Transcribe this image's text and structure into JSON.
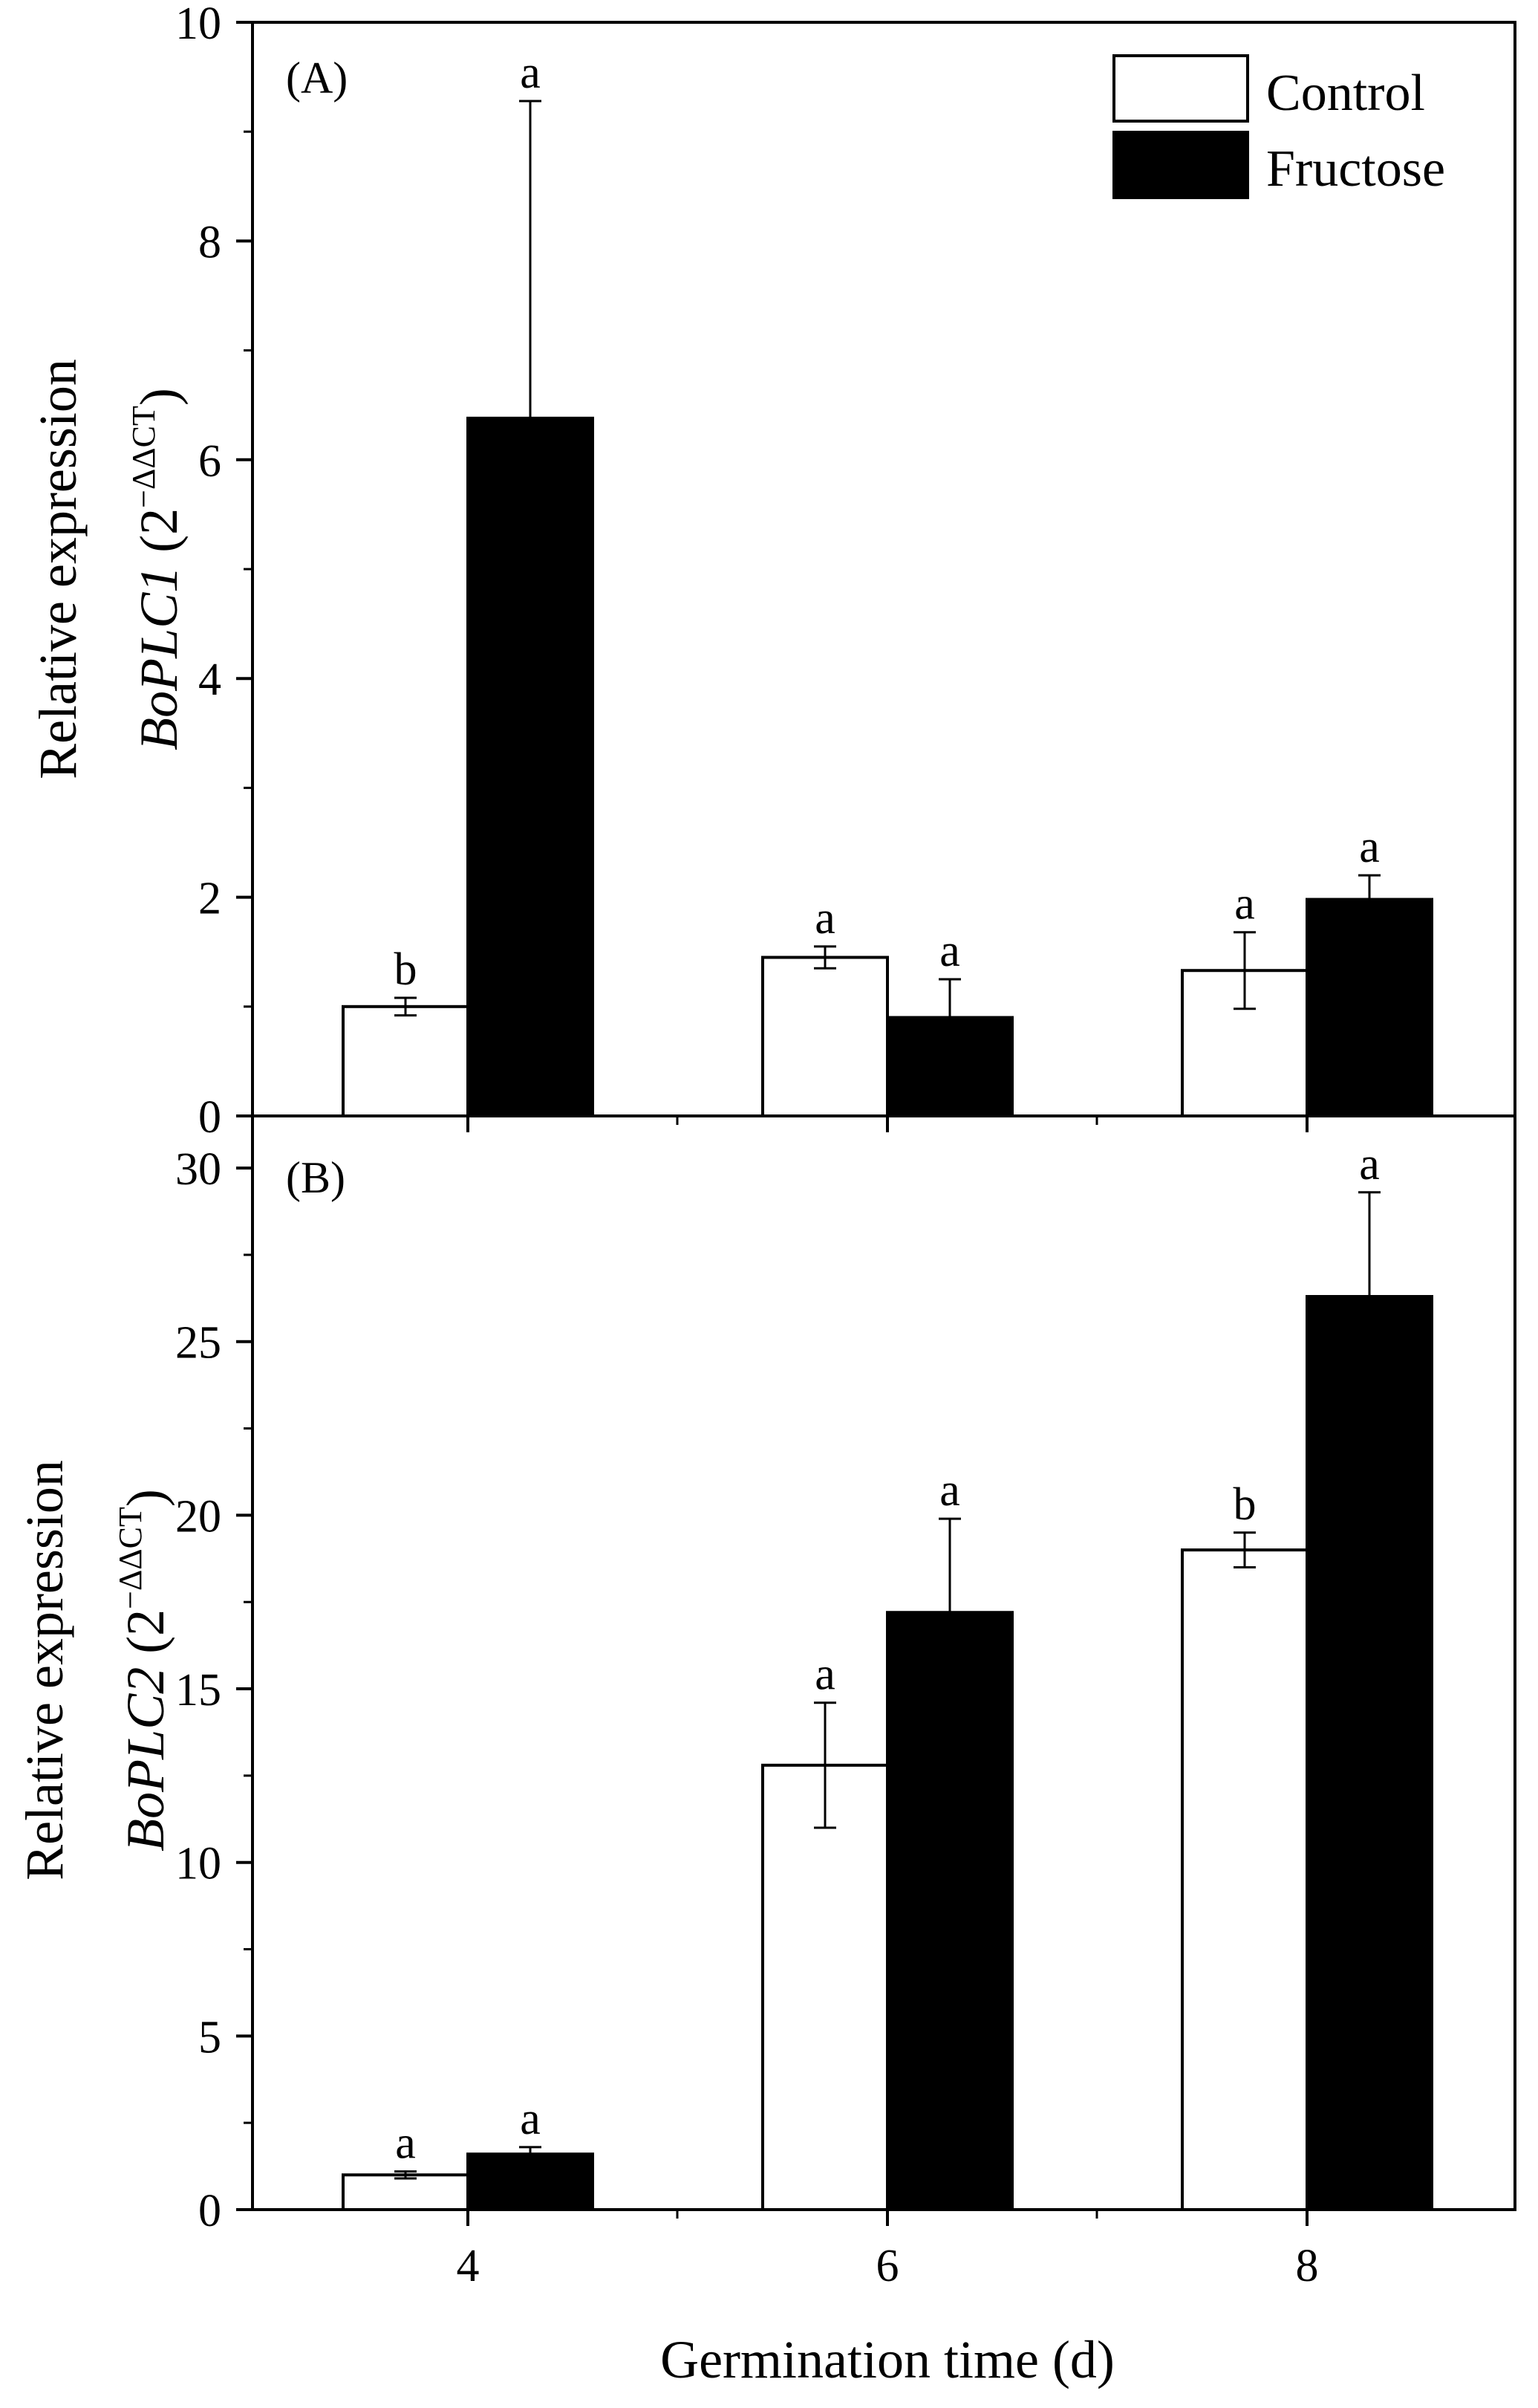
{
  "chart_data": [
    {
      "type": "bar",
      "panel_label": "(A)",
      "ylabel_line1": "Relative expression",
      "ylabel_gene": "BoPLC1",
      "ylabel_unit_open": " (2",
      "ylabel_unit_sup": "−ΔΔCT",
      "ylabel_unit_close": ")",
      "ylim": [
        0,
        10
      ],
      "yticks": [
        0,
        2,
        4,
        6,
        8,
        10
      ],
      "categories": [
        "4",
        "6",
        "8"
      ],
      "series": [
        {
          "name": "Control",
          "fill": "#ffffff",
          "values": [
            1.0,
            1.45,
            1.33
          ],
          "errors": [
            0.08,
            0.1,
            0.35
          ],
          "letters": [
            "b",
            "a",
            "a"
          ]
        },
        {
          "name": "Fructose",
          "fill": "#000000",
          "values": [
            6.38,
            0.9,
            1.98
          ],
          "errors": [
            2.9,
            0.35,
            0.22
          ],
          "letters": [
            "a",
            "a",
            "a"
          ]
        }
      ]
    },
    {
      "type": "bar",
      "panel_label": "(B)",
      "ylabel_line1": "Relative expression",
      "ylabel_gene": "BoPLC2",
      "ylabel_unit_open": " (2",
      "ylabel_unit_sup": "−ΔΔCT",
      "ylabel_unit_close": ")",
      "ylim": [
        0,
        31.5
      ],
      "yticks": [
        0,
        5,
        10,
        15,
        20,
        25,
        30
      ],
      "categories": [
        "4",
        "6",
        "8"
      ],
      "series": [
        {
          "name": "Control",
          "fill": "#ffffff",
          "values": [
            1.0,
            12.8,
            19.0
          ],
          "errors": [
            0.1,
            1.8,
            0.5
          ],
          "letters": [
            "a",
            "a",
            "b"
          ]
        },
        {
          "name": "Fructose",
          "fill": "#000000",
          "values": [
            1.6,
            17.2,
            26.3
          ],
          "errors": [
            0.2,
            2.7,
            3.0
          ],
          "letters": [
            "a",
            "a",
            "a"
          ]
        }
      ]
    }
  ],
  "legend": [
    {
      "label": "Control",
      "fill": "#ffffff"
    },
    {
      "label": "Fructose",
      "fill": "#000000"
    }
  ],
  "xlabel": "Germination time (d)"
}
